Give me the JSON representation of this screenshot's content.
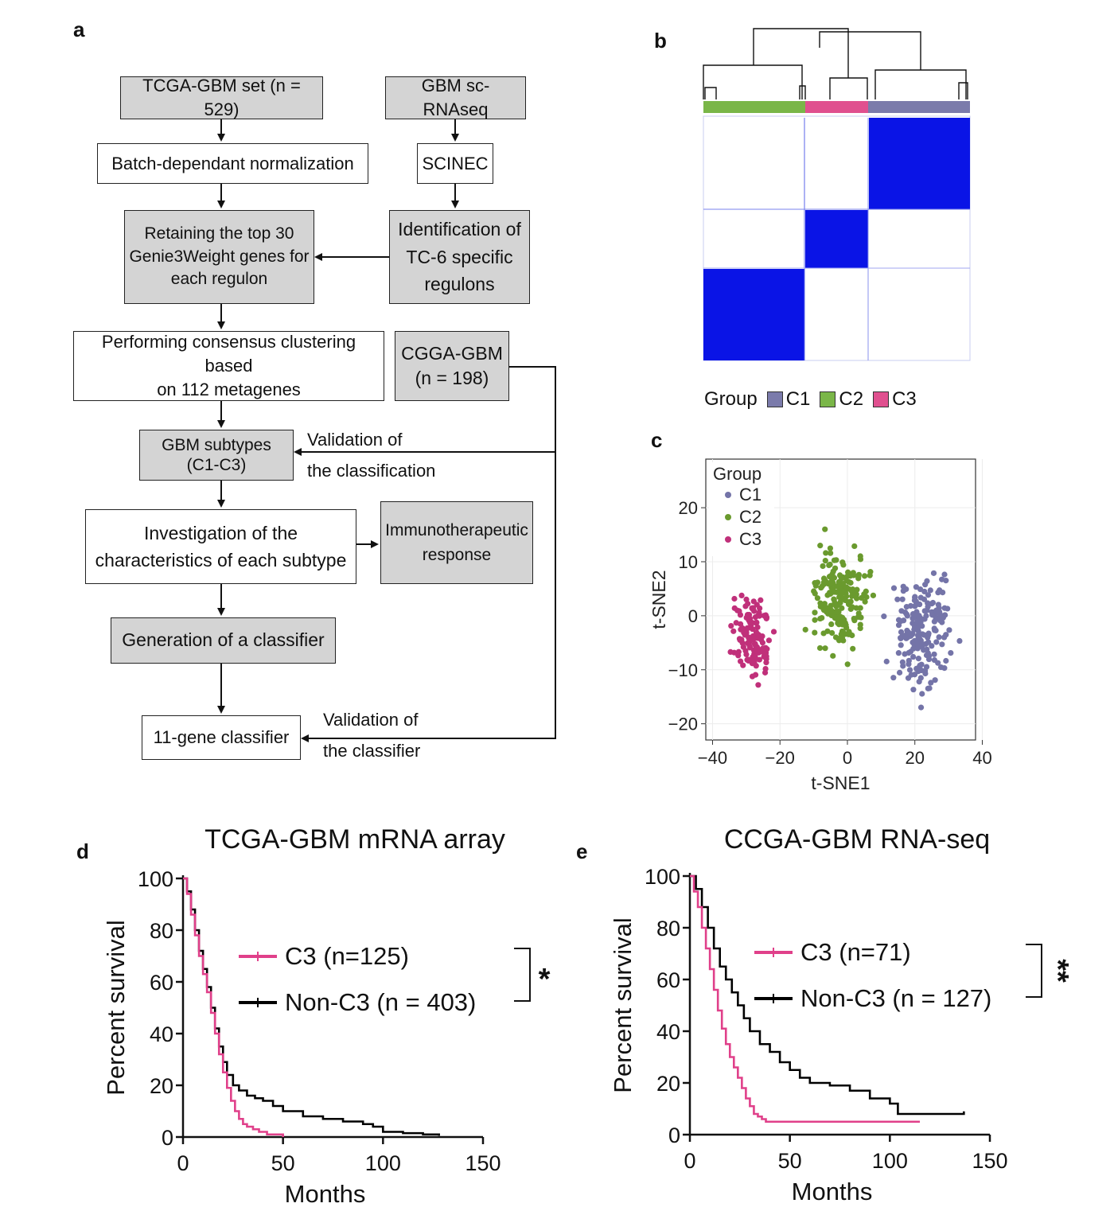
{
  "panels": {
    "a": "a",
    "b": "b",
    "c": "c",
    "d": "d",
    "e": "e"
  },
  "flowchart": {
    "tcga_set": "TCGA-GBM set (n = 529)",
    "sc_rnaseq": "GBM sc-RNAseq",
    "batch_norm": "Batch-dependant normalization",
    "scinec": "SCINEC",
    "retaining": "Retaining the top 30\nGenie3Weight genes for\neach regulon",
    "identification": "Identification of\nTC-6 specific\nregulons",
    "consensus": "Performing consensus clustering based\non 112 metagenes",
    "cgga": "CGGA-GBM\n(n = 198)",
    "subtypes": "GBM subtypes\n(C1-C3)",
    "validation_classification": "Validation of\nthe classification",
    "investigation": "Investigation of the\ncharacteristics of each subtype",
    "immuno": "Immunotherapeutic\nresponse",
    "generation": "Generation of a classifier",
    "classifier": "11-gene classifier",
    "validation_classifier": "Validation of\nthe classifier"
  },
  "heatmap": {
    "legend_title": "Group",
    "groups": [
      {
        "label": "C1",
        "color": "#7b7bab"
      },
      {
        "label": "C2",
        "color": "#7ab648"
      },
      {
        "label": "C3",
        "color": "#e0508f"
      }
    ],
    "block_color": "#0a14e6"
  },
  "chart_data": [
    {
      "panel": "c",
      "type": "scatter",
      "xlabel": "t-SNE1",
      "ylabel": "t-SNE2",
      "xlim": [
        -42,
        38
      ],
      "ylim": [
        -23,
        29
      ],
      "xticks": [
        -40,
        -20,
        0,
        20,
        40
      ],
      "yticks": [
        20,
        10,
        0,
        -10,
        -20
      ],
      "legend_title": "Group",
      "legend_position": "top-left",
      "grid": true,
      "series": [
        {
          "name": "C1",
          "color": "#7474a8",
          "center": [
            23,
            -3
          ],
          "spread": [
            8,
            9
          ],
          "count": 190
        },
        {
          "name": "C2",
          "color": "#6a9a2e",
          "center": [
            -2,
            3
          ],
          "spread": [
            8,
            8
          ],
          "count": 185
        },
        {
          "name": "C3",
          "color": "#c0307a",
          "center": [
            -28,
            -4
          ],
          "spread": [
            5,
            7
          ],
          "count": 125
        }
      ]
    },
    {
      "panel": "d",
      "type": "line",
      "title": "TCGA-GBM mRNA array",
      "xlabel": "Months",
      "ylabel": "Percent survival",
      "xlim": [
        0,
        150
      ],
      "ylim": [
        0,
        100
      ],
      "xticks": [
        0,
        50,
        100,
        150
      ],
      "yticks": [
        0,
        20,
        40,
        60,
        80,
        100
      ],
      "significance": "*",
      "series": [
        {
          "name": "C3 (n=125)",
          "color": "#e0408a",
          "x": [
            0,
            2,
            4,
            6,
            8,
            10,
            12,
            14,
            16,
            18,
            20,
            22,
            24,
            26,
            28,
            30,
            32,
            35,
            38,
            42,
            46,
            50
          ],
          "y": [
            100,
            94,
            86,
            78,
            70,
            63,
            56,
            48,
            40,
            32,
            25,
            19,
            14,
            10,
            7,
            5,
            4,
            3,
            2,
            1,
            1,
            0
          ]
        },
        {
          "name": "Non-C3 (n = 403)",
          "color": "#000000",
          "x": [
            0,
            2,
            4,
            6,
            8,
            10,
            12,
            14,
            16,
            18,
            20,
            22,
            25,
            28,
            32,
            36,
            40,
            45,
            50,
            60,
            70,
            80,
            90,
            95,
            100,
            110,
            120,
            128
          ],
          "y": [
            100,
            95,
            88,
            80,
            72,
            65,
            58,
            50,
            42,
            35,
            29,
            24,
            20,
            18,
            16,
            15,
            14,
            12,
            10,
            8,
            7,
            6,
            5,
            4,
            2,
            1.5,
            1,
            0.5
          ]
        }
      ]
    },
    {
      "panel": "e",
      "type": "line",
      "title": "CCGA-GBM RNA-seq",
      "xlabel": "Months",
      "ylabel": "Percent survival",
      "xlim": [
        0,
        150
      ],
      "ylim": [
        0,
        100
      ],
      "xticks": [
        0,
        50,
        100,
        150
      ],
      "yticks": [
        0,
        20,
        40,
        60,
        80,
        100
      ],
      "significance": "**",
      "series": [
        {
          "name": "C3 (n=71)",
          "color": "#e0408a",
          "x": [
            0,
            2,
            4,
            6,
            8,
            10,
            12,
            14,
            16,
            18,
            20,
            22,
            24,
            26,
            28,
            30,
            32,
            34,
            36,
            38,
            50,
            60,
            80,
            100,
            115
          ],
          "y": [
            100,
            94,
            88,
            80,
            72,
            64,
            56,
            48,
            41,
            35,
            30,
            26,
            22,
            18,
            14,
            11,
            8,
            7,
            6,
            5,
            5,
            5,
            5,
            5,
            5
          ]
        },
        {
          "name": "Non-C3 (n = 127)",
          "color": "#000000",
          "x": [
            0,
            3,
            6,
            9,
            12,
            15,
            18,
            21,
            24,
            27,
            30,
            35,
            40,
            45,
            50,
            55,
            60,
            70,
            80,
            90,
            100,
            104,
            110,
            120,
            130,
            137
          ],
          "y": [
            100,
            95,
            88,
            80,
            72,
            65,
            60,
            55,
            50,
            45,
            40,
            35,
            32,
            28,
            25,
            22,
            20,
            19,
            17,
            14,
            12,
            8,
            8,
            8,
            8,
            9
          ]
        }
      ]
    }
  ]
}
